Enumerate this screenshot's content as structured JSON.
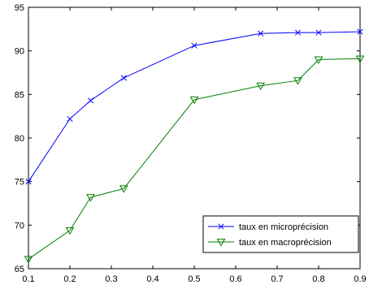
{
  "chart_data": {
    "type": "line",
    "title": "",
    "xlabel": "",
    "ylabel": "",
    "xlim": [
      0.1,
      0.9
    ],
    "ylim": [
      65,
      95
    ],
    "xticks": [
      0.1,
      0.2,
      0.3,
      0.4,
      0.5,
      0.6,
      0.7,
      0.8,
      0.9
    ],
    "yticks": [
      65,
      70,
      75,
      80,
      85,
      90,
      95
    ],
    "xtick_labels": [
      "0.1",
      "0.2",
      "0.3",
      "0.4",
      "0.5",
      "0.6",
      "0.7",
      "0.8",
      "0.9"
    ],
    "ytick_labels": [
      "65",
      "70",
      "75",
      "80",
      "85",
      "90",
      "95"
    ],
    "grid": false,
    "legend_position": "bottom-right",
    "series": [
      {
        "name": "taux en microprécision",
        "color": "#0000ff",
        "marker": "x",
        "x": [
          0.1,
          0.2,
          0.25,
          0.33,
          0.5,
          0.66,
          0.75,
          0.8,
          0.9
        ],
        "y": [
          75.0,
          82.2,
          84.3,
          86.9,
          90.6,
          92.0,
          92.1,
          92.1,
          92.2
        ]
      },
      {
        "name": "taux en macroprécision",
        "color": "#008000",
        "marker": "triangle-down",
        "x": [
          0.1,
          0.2,
          0.25,
          0.33,
          0.5,
          0.66,
          0.75,
          0.8,
          0.9
        ],
        "y": [
          66.1,
          69.4,
          73.2,
          74.2,
          84.4,
          86.0,
          86.6,
          89.0,
          89.1
        ]
      }
    ]
  }
}
